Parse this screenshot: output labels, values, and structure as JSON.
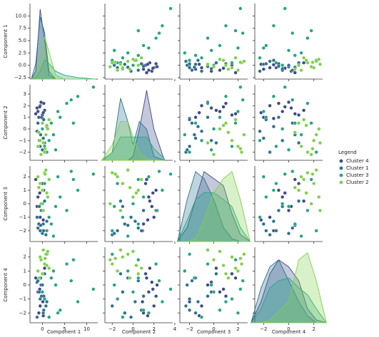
{
  "chart_data": {
    "type": "pairplot",
    "variables": [
      "Component 1",
      "Component 2",
      "Component 3",
      "Component 4"
    ],
    "lims": [
      [
        -2.8,
        12.5
      ],
      [
        -2.7,
        3.8
      ],
      [
        -2.8,
        2.8
      ],
      [
        -2.7,
        2.7
      ]
    ],
    "yticks": [
      [
        {
          "value": -2.5,
          "label": "−2.5"
        },
        {
          "value": 0,
          "label": "0.0"
        },
        {
          "value": 2.5,
          "label": "2.5"
        },
        {
          "value": 5,
          "label": "5.0"
        },
        {
          "value": 7.5,
          "label": "7.5"
        },
        {
          "value": 10,
          "label": "10.0"
        }
      ],
      [
        {
          "value": -2,
          "label": "−2"
        },
        {
          "value": -1,
          "label": "−1"
        },
        0,
        1,
        2,
        3
      ],
      [
        {
          "value": -2,
          "label": "−2"
        },
        {
          "value": -1,
          "label": "−1"
        },
        0,
        1,
        2
      ],
      [
        {
          "value": -2,
          "label": "−2"
        },
        {
          "value": -1,
          "label": "−1"
        },
        0,
        1,
        2
      ]
    ],
    "xticks": [
      [
        0,
        5,
        10
      ],
      [
        {
          "value": -2,
          "label": "−2"
        },
        0,
        2,
        4
      ],
      [
        {
          "value": -2,
          "label": "−2"
        },
        0,
        2
      ],
      [
        {
          "value": -2,
          "label": "−2"
        },
        0,
        2
      ]
    ],
    "kde_x": [
      [
        -2.5,
        -1.5,
        -0.5,
        0.5,
        1.5,
        3,
        5,
        8,
        12
      ],
      [
        -3,
        -2,
        -1.2,
        -0.5,
        0,
        0.6,
        1.3,
        2,
        3
      ],
      [
        -3,
        -2.2,
        -1.5,
        -0.8,
        0,
        0.8,
        1.5,
        2.2,
        3
      ],
      [
        -3,
        -2.2,
        -1.5,
        -0.8,
        0,
        0.8,
        1.5,
        2.2,
        3
      ]
    ],
    "legend_title": "Legend",
    "series": [
      {
        "name": "Cluster 4",
        "color": "#3e4a89",
        "values": [
          [
            -1.0,
            1.5,
            0.5,
            -0.5
          ],
          [
            -0.5,
            2.0,
            -1.0,
            -1.5
          ],
          [
            0.0,
            1.2,
            1.5,
            0.8
          ],
          [
            -1.2,
            1.8,
            -0.2,
            0.2
          ],
          [
            0.3,
            2.2,
            1.0,
            -0.8
          ],
          [
            -0.8,
            1.0,
            -1.5,
            -2.0
          ],
          [
            0.5,
            1.6,
            0.2,
            1.2
          ],
          [
            -0.3,
            2.3,
            -0.5,
            0.0
          ],
          [
            -1.5,
            1.3,
            1.8,
            0.5
          ],
          [
            0.1,
            0.9,
            -2.0,
            -1.2
          ],
          [
            -0.6,
            1.9,
            0.8,
            -0.3
          ],
          [
            0.2,
            1.4,
            -1.2,
            -2.2
          ]
        ],
        "density": [
          [
            0,
            0.1,
            0.9,
            0.5,
            0.05,
            0,
            0,
            0,
            0
          ],
          [
            0,
            0,
            0,
            0,
            0.05,
            0.4,
            0.9,
            0.4,
            0
          ],
          [
            0,
            0.1,
            0.3,
            0.5,
            0.45,
            0.4,
            0.2,
            0.05,
            0
          ],
          [
            0,
            0.15,
            0.35,
            0.45,
            0.4,
            0.3,
            0.1,
            0.02,
            0
          ]
        ]
      },
      {
        "name": "Cluster 1",
        "color": "#2c718e",
        "values": [
          [
            -0.5,
            -1.5,
            -2.0,
            -1.0
          ],
          [
            0.2,
            -0.8,
            -1.5,
            -2.0
          ],
          [
            -1.0,
            0.5,
            -1.8,
            0.3
          ],
          [
            0.8,
            -2.0,
            -2.3,
            -1.5
          ],
          [
            -0.2,
            1.0,
            -0.5,
            -0.8
          ],
          [
            0.5,
            -1.2,
            0.2,
            0.8
          ],
          [
            -1.2,
            -0.2,
            -1.0,
            -2.3
          ],
          [
            0.0,
            -1.8,
            -2.2,
            0.0
          ],
          [
            1.0,
            0.2,
            -1.3,
            -1.2
          ],
          [
            -0.7,
            -1.0,
            -0.2,
            -0.5
          ],
          [
            0.3,
            0.8,
            -2.0,
            -1.8
          ],
          [
            -0.4,
            -0.5,
            -1.6,
            0.5
          ]
        ],
        "density": [
          [
            0,
            0.2,
            0.8,
            0.6,
            0.1,
            0,
            0,
            0,
            0
          ],
          [
            0,
            0.1,
            0.8,
            0.5,
            0.2,
            0.5,
            0.4,
            0.05,
            0
          ],
          [
            0,
            0.3,
            0.5,
            0.45,
            0.3,
            0.1,
            0.02,
            0,
            0
          ],
          [
            0,
            0.25,
            0.4,
            0.45,
            0.3,
            0.15,
            0.05,
            0,
            0
          ]
        ]
      },
      {
        "name": "Cluster 3",
        "color": "#25a583",
        "values": [
          [
            0.5,
            -1.5,
            1.5,
            -1.0
          ],
          [
            2.0,
            0.5,
            -1.5,
            0.5
          ],
          [
            3.5,
            1.5,
            2.0,
            -2.0
          ],
          [
            5.5,
            2.2,
            -0.5,
            1.5
          ],
          [
            8.0,
            2.8,
            1.0,
            -1.2
          ],
          [
            11.5,
            3.6,
            2.2,
            -0.3
          ],
          [
            1.0,
            -2.0,
            -2.0,
            2.2
          ],
          [
            4.0,
            1.0,
            0.5,
            -1.8
          ],
          [
            2.5,
            -0.5,
            -2.4,
            1.0
          ],
          [
            6.5,
            2.5,
            2.4,
            0.3
          ],
          [
            0.0,
            0.0,
            0.0,
            -0.5
          ],
          [
            1.5,
            -1.0,
            -1.0,
            -2.3
          ],
          [
            7.0,
            0.5,
            1.8,
            1.8
          ],
          [
            3.0,
            -1.8,
            -0.2,
            0.0
          ]
        ],
        "density": [
          [
            0,
            0.02,
            0.1,
            0.25,
            0.2,
            0.1,
            0.05,
            0.02,
            0
          ],
          [
            0,
            0.1,
            0.3,
            0.3,
            0.3,
            0.3,
            0.3,
            0.15,
            0.02
          ],
          [
            0,
            0.15,
            0.3,
            0.35,
            0.35,
            0.3,
            0.25,
            0.1,
            0
          ],
          [
            0,
            0.1,
            0.25,
            0.3,
            0.32,
            0.25,
            0.2,
            0.1,
            0
          ]
        ]
      },
      {
        "name": "Cluster 2",
        "color": "#7fd04c",
        "values": [
          [
            -0.5,
            -1.0,
            1.5,
            2.0
          ],
          [
            0.5,
            -2.0,
            2.3,
            1.5
          ],
          [
            1.2,
            0.0,
            0.5,
            2.4
          ],
          [
            -1.0,
            -1.5,
            2.0,
            1.0
          ],
          [
            0.0,
            0.5,
            1.0,
            0.8
          ],
          [
            0.8,
            -0.5,
            2.5,
            2.2
          ],
          [
            -0.3,
            -2.2,
            0.0,
            1.8
          ],
          [
            1.5,
            0.8,
            1.8,
            1.2
          ],
          [
            0.2,
            -1.2,
            -0.5,
            2.5
          ],
          [
            -0.8,
            -0.3,
            1.2,
            0.5
          ],
          [
            0.6,
            -1.7,
            2.2,
            1.9
          ],
          [
            1.0,
            0.3,
            0.8,
            1.4
          ]
        ],
        "density": [
          [
            0,
            0.05,
            0.3,
            0.55,
            0.35,
            0.05,
            0,
            0,
            0
          ],
          [
            0,
            0.2,
            0.5,
            0.5,
            0.3,
            0.1,
            0.02,
            0,
            0
          ],
          [
            0,
            0,
            0.02,
            0.15,
            0.35,
            0.45,
            0.5,
            0.3,
            0
          ],
          [
            0,
            0,
            0.02,
            0.08,
            0.15,
            0.45,
            0.5,
            0.3,
            0
          ]
        ]
      }
    ]
  }
}
